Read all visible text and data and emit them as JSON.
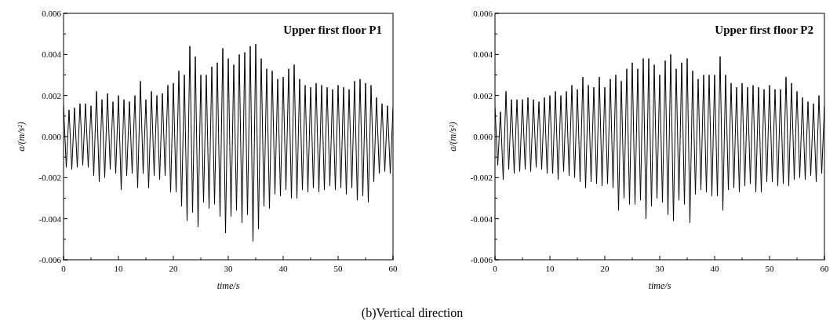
{
  "chart_data": [
    {
      "type": "line",
      "title": "Upper first floor P1",
      "xlabel": "time/s",
      "ylabel": "a/(m/s²)",
      "xlim": [
        0,
        60
      ],
      "ylim": [
        -0.006,
        0.006
      ],
      "xticks": [
        0,
        {
          "value": 5,
          "label": null
        },
        10,
        {
          "value": 15,
          "label": null
        },
        20,
        {
          "value": 25,
          "label": null
        },
        30,
        {
          "value": 35,
          "label": null
        },
        40,
        {
          "value": 45,
          "label": null
        },
        50,
        {
          "value": 55,
          "label": null
        },
        60
      ],
      "yticks": [
        -0.006,
        {
          "value": -0.005,
          "label": null
        },
        -0.004,
        {
          "value": -0.003,
          "label": null
        },
        -0.002,
        {
          "value": -0.001,
          "label": null
        },
        {
          "value": 0,
          "label": "0.000"
        },
        {
          "value": 0.001,
          "label": null
        },
        0.002,
        {
          "value": 0.003,
          "label": null
        },
        0.004,
        {
          "value": 0.005,
          "label": null
        },
        0.006
      ],
      "series": [
        {
          "color": "#000000",
          "x": [
            0,
            0.5,
            1,
            1.5,
            2,
            2.5,
            3,
            3.5,
            4,
            4.5,
            5,
            5.5,
            6,
            6.5,
            7,
            7.5,
            8,
            8.5,
            9,
            9.5,
            10,
            10.5,
            11,
            11.5,
            12,
            12.5,
            13,
            13.5,
            14,
            14.5,
            15,
            15.5,
            16,
            16.5,
            17,
            17.5,
            18,
            18.5,
            19,
            19.5,
            20,
            20.5,
            21,
            21.5,
            22,
            22.5,
            23,
            23.5,
            24,
            24.5,
            25,
            25.5,
            26,
            26.5,
            27,
            27.5,
            28,
            28.5,
            29,
            29.5,
            30,
            30.5,
            31,
            31.5,
            32,
            32.5,
            33,
            33.5,
            34,
            34.5,
            35,
            35.5,
            36,
            36.5,
            37,
            37.5,
            38,
            38.5,
            39,
            39.5,
            40,
            40.5,
            41,
            41.5,
            42,
            42.5,
            43,
            43.5,
            44,
            44.5,
            45,
            45.5,
            46,
            46.5,
            47,
            47.5,
            48,
            48.5,
            49,
            49.5,
            50,
            50.5,
            51,
            51.5,
            52,
            52.5,
            53,
            53.5,
            54,
            54.5,
            55,
            55.5,
            56,
            56.5,
            57,
            57.5,
            58,
            58.5,
            59,
            59.5,
            60
          ],
          "values": [
            0.0015,
            -0.0015,
            0.0013,
            -0.0016,
            0.0014,
            -0.0015,
            0.0016,
            -0.0014,
            0.0016,
            -0.0015,
            0.0015,
            -0.0019,
            0.0022,
            -0.0022,
            0.0018,
            -0.002,
            0.0021,
            -0.0016,
            0.0017,
            -0.0018,
            0.002,
            -0.0026,
            0.0018,
            -0.0019,
            0.0017,
            -0.0018,
            0.002,
            -0.0025,
            0.0027,
            -0.0018,
            0.0018,
            -0.0025,
            0.0022,
            -0.0019,
            0.002,
            -0.0021,
            0.0021,
            -0.0019,
            0.0025,
            -0.0027,
            0.0026,
            -0.0027,
            0.0032,
            -0.0034,
            0.003,
            -0.0041,
            0.0044,
            -0.0037,
            0.0039,
            -0.0044,
            0.003,
            -0.0032,
            0.003,
            -0.0035,
            0.0034,
            -0.0033,
            0.0036,
            -0.0039,
            0.0043,
            -0.0047,
            0.0038,
            -0.0039,
            0.0035,
            -0.0036,
            0.004,
            -0.0042,
            0.0041,
            -0.0038,
            0.0044,
            -0.0051,
            0.0045,
            -0.0045,
            0.0038,
            -0.0034,
            0.0033,
            -0.0035,
            0.0032,
            -0.0028,
            0.0028,
            -0.0029,
            0.0029,
            -0.0026,
            0.0033,
            -0.003,
            0.0035,
            -0.003,
            0.0028,
            -0.0026,
            0.0025,
            -0.0027,
            0.0024,
            -0.0025,
            0.0026,
            -0.0027,
            0.0025,
            -0.0026,
            0.0024,
            -0.0024,
            0.0023,
            -0.0026,
            0.0025,
            -0.0025,
            0.0024,
            -0.0028,
            0.0023,
            -0.0025,
            0.0027,
            -0.0031,
            0.0028,
            -0.0029,
            0.0026,
            -0.0032,
            0.0025,
            -0.0022,
            0.0019,
            -0.0018,
            0.0016,
            -0.0017,
            0.0015,
            -0.0018,
            0.0014
          ]
        }
      ]
    },
    {
      "type": "line",
      "title": "Upper first floor P2",
      "xlabel": "time/s",
      "ylabel": "a/(m/s²)",
      "xlim": [
        0,
        60
      ],
      "ylim": [
        -0.006,
        0.006
      ],
      "xticks": [
        0,
        {
          "value": 5,
          "label": null
        },
        10,
        {
          "value": 15,
          "label": null
        },
        20,
        {
          "value": 25,
          "label": null
        },
        30,
        {
          "value": 35,
          "label": null
        },
        40,
        {
          "value": 45,
          "label": null
        },
        50,
        {
          "value": 55,
          "label": null
        },
        60
      ],
      "yticks": [
        -0.006,
        {
          "value": -0.005,
          "label": null
        },
        -0.004,
        {
          "value": -0.003,
          "label": null
        },
        -0.002,
        {
          "value": -0.001,
          "label": null
        },
        {
          "value": 0,
          "label": "0.000"
        },
        {
          "value": 0.001,
          "label": null
        },
        0.002,
        {
          "value": 0.003,
          "label": null
        },
        0.004,
        {
          "value": 0.005,
          "label": null
        },
        0.006
      ],
      "annotations": [
        "(b)Vertical direction"
      ],
      "series": [
        {
          "color": "#000000",
          "x": [
            0,
            0.5,
            1,
            1.5,
            2,
            2.5,
            3,
            3.5,
            4,
            4.5,
            5,
            5.5,
            6,
            6.5,
            7,
            7.5,
            8,
            8.5,
            9,
            9.5,
            10,
            10.5,
            11,
            11.5,
            12,
            12.5,
            13,
            13.5,
            14,
            14.5,
            15,
            15.5,
            16,
            16.5,
            17,
            17.5,
            18,
            18.5,
            19,
            19.5,
            20,
            20.5,
            21,
            21.5,
            22,
            22.5,
            23,
            23.5,
            24,
            24.5,
            25,
            25.5,
            26,
            26.5,
            27,
            27.5,
            28,
            28.5,
            29,
            29.5,
            30,
            30.5,
            31,
            31.5,
            32,
            32.5,
            33,
            33.5,
            34,
            34.5,
            35,
            35.5,
            36,
            36.5,
            37,
            37.5,
            38,
            38.5,
            39,
            39.5,
            40,
            40.5,
            41,
            41.5,
            42,
            42.5,
            43,
            43.5,
            44,
            44.5,
            45,
            45.5,
            46,
            46.5,
            47,
            47.5,
            48,
            48.5,
            49,
            49.5,
            50,
            50.5,
            51,
            51.5,
            52,
            52.5,
            53,
            53.5,
            54,
            54.5,
            55,
            55.5,
            56,
            56.5,
            57,
            57.5,
            58,
            58.5,
            59,
            59.5,
            60
          ],
          "values": [
            0.0014,
            -0.0014,
            0.0012,
            -0.0021,
            0.0022,
            -0.0016,
            0.0018,
            -0.0018,
            0.0018,
            -0.0017,
            0.0018,
            -0.0016,
            0.0019,
            -0.0017,
            0.0018,
            -0.0015,
            0.0017,
            -0.0016,
            0.0019,
            -0.0018,
            0.002,
            -0.0018,
            0.0022,
            -0.0021,
            0.002,
            -0.0017,
            0.0022,
            -0.0019,
            0.0025,
            -0.002,
            0.0023,
            -0.0022,
            0.0029,
            -0.0025,
            0.0025,
            -0.0022,
            0.0024,
            -0.0023,
            0.0029,
            -0.0024,
            0.0024,
            -0.0023,
            0.0028,
            -0.0025,
            0.003,
            -0.0036,
            0.0027,
            -0.003,
            0.0033,
            -0.0033,
            0.0036,
            -0.0033,
            0.0033,
            -0.0031,
            0.0038,
            -0.004,
            0.0038,
            -0.0034,
            0.0035,
            -0.003,
            0.003,
            -0.0032,
            0.0037,
            -0.0038,
            0.004,
            -0.0041,
            0.0033,
            -0.0031,
            0.0036,
            -0.0033,
            0.0038,
            -0.0042,
            0.0032,
            -0.0028,
            0.0028,
            -0.0026,
            0.003,
            -0.0027,
            0.003,
            -0.0029,
            0.003,
            -0.0029,
            0.0039,
            -0.0036,
            0.003,
            -0.0026,
            0.0026,
            -0.0025,
            0.0024,
            -0.0027,
            0.0026,
            -0.0024,
            0.0024,
            -0.0023,
            0.0025,
            -0.0027,
            0.0024,
            -0.0027,
            0.0023,
            -0.0022,
            0.0025,
            -0.0022,
            0.0023,
            -0.0024,
            0.0023,
            -0.0023,
            0.0029,
            -0.0024,
            0.0026,
            -0.0021,
            0.0022,
            -0.002,
            0.0019,
            -0.0021,
            0.0017,
            -0.0019,
            0.0016,
            -0.0022,
            0.002,
            -0.0018,
            0.0015
          ]
        }
      ]
    }
  ]
}
